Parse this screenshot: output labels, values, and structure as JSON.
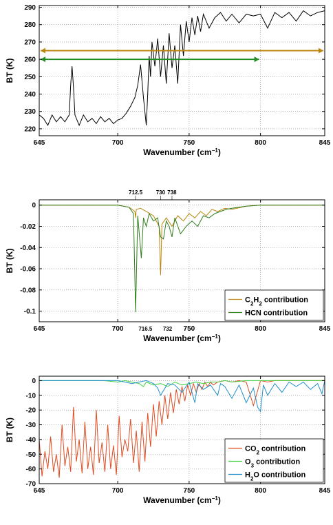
{
  "chart_data": [
    {
      "type": "line",
      "title": "",
      "xlabel": "Wavenumber (cm",
      "xlabel_sup": "−1",
      "xlabel_end": ")",
      "ylabel": "BT (K)",
      "xlim": [
        645,
        845
      ],
      "ylim": [
        216,
        291
      ],
      "xticks": [
        645,
        700,
        750,
        800,
        845
      ],
      "yticks": [
        220,
        230,
        240,
        250,
        260,
        270,
        280,
        290
      ],
      "grid": true,
      "series": [
        {
          "color": "#000000",
          "x": [
            645,
            648,
            651,
            654,
            657,
            660,
            663,
            666,
            667,
            668,
            669,
            670,
            673,
            676,
            679,
            682,
            685,
            688,
            691,
            694,
            697,
            700,
            703,
            706,
            709,
            712,
            714,
            716,
            718,
            720,
            721,
            722,
            723,
            724,
            726,
            728,
            730,
            732,
            734,
            736,
            738,
            740,
            742,
            744,
            746,
            748,
            750,
            752,
            754,
            756,
            758,
            760,
            764,
            768,
            772,
            776,
            780,
            785,
            790,
            795,
            800,
            805,
            810,
            815,
            820,
            825,
            830,
            835,
            840,
            845
          ],
          "y": [
            228,
            226,
            222,
            228,
            224,
            227,
            224,
            228,
            245,
            256,
            244,
            228,
            222,
            228,
            224,
            226,
            223,
            227,
            224,
            226,
            223,
            225,
            226,
            229,
            233,
            238,
            245,
            257,
            238,
            222,
            240,
            262,
            250,
            270,
            256,
            272,
            250,
            268,
            246,
            275,
            255,
            268,
            246,
            280,
            262,
            282,
            270,
            284,
            274,
            285,
            276,
            286,
            278,
            284,
            287,
            282,
            286,
            281,
            286,
            285,
            286,
            278,
            287,
            284,
            287,
            282,
            288,
            285,
            287,
            288
          ]
        }
      ],
      "annotations": [
        {
          "type": "double-arrow",
          "x1": 645,
          "x2": 845,
          "y": 265,
          "color": "#b8860b"
        },
        {
          "type": "double-arrow",
          "x1": 645,
          "x2": 800,
          "y": 260,
          "color": "#228b22"
        }
      ]
    },
    {
      "type": "line",
      "xlabel": "Wavenumber (cm",
      "xlabel_sup": "−1",
      "xlabel_end": ")",
      "ylabel": "BT (K)",
      "xlim": [
        645,
        845
      ],
      "ylim": [
        -0.11,
        0.005
      ],
      "xticks": [
        645,
        700,
        750,
        800,
        845
      ],
      "yticks": [
        0,
        -0.02,
        -0.04,
        -0.06,
        -0.08,
        -0.1
      ],
      "ytick_labels": [
        "0",
        "-0.02",
        "-0.04",
        "-0.06",
        "-0.08",
        "-0.1"
      ],
      "top_labels": [
        "712.5",
        "730",
        "738"
      ],
      "top_label_x": [
        712.5,
        730,
        738
      ],
      "bottom_labels": [
        "716.5",
        "732"
      ],
      "bottom_label_x": [
        716.5,
        732
      ],
      "grid": true,
      "legend": "bottom-right",
      "series": [
        {
          "name_main": "C",
          "name_sub1": "2",
          "name_mid": "H",
          "name_sub2": "2",
          "name_tail": " contribution",
          "color": "#b8860b",
          "x": [
            645,
            700,
            708,
            712,
            712.5,
            713,
            716,
            720,
            725,
            729,
            730,
            731,
            734,
            738,
            742,
            746,
            750,
            754,
            758,
            762,
            766,
            770,
            775,
            780,
            790,
            800,
            845
          ],
          "y": [
            0,
            0,
            -0.002,
            -0.006,
            -0.012,
            -0.004,
            -0.003,
            -0.006,
            -0.01,
            -0.02,
            -0.066,
            -0.018,
            -0.012,
            -0.02,
            -0.01,
            -0.015,
            -0.008,
            -0.012,
            -0.006,
            -0.01,
            -0.004,
            -0.006,
            -0.003,
            -0.004,
            -0.001,
            0,
            0
          ]
        },
        {
          "name": "HCN contribution",
          "color": "#2e7d1a",
          "x": [
            645,
            700,
            708,
            711,
            712.5,
            714,
            716.5,
            718,
            720,
            722,
            725,
            728,
            730,
            732,
            734,
            736,
            738,
            740,
            744,
            748,
            752,
            756,
            760,
            764,
            768,
            772,
            776,
            780,
            790,
            800,
            845
          ],
          "y": [
            0,
            0,
            -0.002,
            -0.008,
            -0.101,
            -0.01,
            -0.05,
            -0.012,
            -0.02,
            -0.008,
            -0.015,
            -0.012,
            -0.03,
            -0.032,
            -0.015,
            -0.02,
            -0.03,
            -0.012,
            -0.027,
            -0.02,
            -0.015,
            -0.02,
            -0.01,
            -0.012,
            -0.008,
            -0.006,
            -0.004,
            -0.003,
            -0.001,
            0,
            0
          ]
        }
      ]
    },
    {
      "type": "line",
      "xlabel": "Wavenumber (cm",
      "xlabel_sup": "−1",
      "xlabel_end": ")",
      "ylabel": "BT (K)",
      "xlim": [
        645,
        845
      ],
      "ylim": [
        -70,
        3
      ],
      "xticks": [
        645,
        700,
        750,
        800,
        845
      ],
      "yticks": [
        0,
        -10,
        -20,
        -30,
        -40,
        -50,
        -60,
        -70
      ],
      "grid": true,
      "legend": "bottom-right",
      "series": [
        {
          "name_main": "CO",
          "name_sub1": "2",
          "name_tail": " contribution",
          "color": "#e04a1f",
          "x": [
            645,
            647,
            649,
            651,
            653,
            655,
            657,
            659,
            661,
            663,
            665,
            667,
            669,
            671,
            673,
            675,
            677,
            679,
            681,
            683,
            685,
            687,
            689,
            691,
            693,
            695,
            697,
            699,
            701,
            703,
            705,
            707,
            709,
            711,
            713,
            715,
            717,
            719,
            721,
            723,
            725,
            727,
            729,
            731,
            733,
            735,
            737,
            739,
            741,
            743,
            745,
            747,
            749,
            751,
            753,
            755,
            757,
            759,
            761,
            763,
            765,
            767,
            770,
            775,
            780,
            785,
            790,
            795,
            800,
            805,
            810,
            820,
            830,
            845
          ],
          "y": [
            -40,
            -65,
            -48,
            -60,
            -38,
            -62,
            -50,
            -66,
            -30,
            -58,
            -45,
            -62,
            -18,
            -55,
            -40,
            -63,
            -28,
            -60,
            -45,
            -64,
            -20,
            -56,
            -42,
            -62,
            -30,
            -60,
            -44,
            -64,
            -24,
            -52,
            -40,
            -48,
            -26,
            -56,
            -34,
            -62,
            -28,
            -55,
            -22,
            -45,
            -16,
            -38,
            -14,
            -30,
            -10,
            -26,
            -8,
            -22,
            -6,
            -16,
            -4,
            -14,
            -3,
            -10,
            -2,
            -8,
            -2,
            -6,
            -1,
            -4,
            -1,
            -3,
            -1,
            0,
            -1,
            0,
            -1,
            -17,
            0,
            -1,
            0,
            0,
            0,
            0
          ]
        },
        {
          "name_main": "O",
          "name_sub1": "3",
          "name_tail": " contribution",
          "color": "#3fd23f",
          "x": [
            645,
            690,
            700,
            705,
            710,
            715,
            718,
            720,
            725,
            730,
            735,
            740,
            745,
            750,
            755,
            760,
            765,
            770,
            775,
            780,
            790,
            800,
            845
          ],
          "y": [
            0,
            0,
            -1,
            0,
            -1,
            -2,
            -4,
            -1,
            -3,
            -2,
            -4,
            -1,
            -3,
            -2,
            -1,
            -2,
            -1,
            -1,
            0,
            -1,
            0,
            0,
            0
          ]
        },
        {
          "name_main": "H",
          "name_sub1": "2",
          "name_mid": "O",
          "name_tail": " contribution",
          "color": "#1f8fc9",
          "x": [
            645,
            700,
            705,
            710,
            715,
            720,
            725,
            728,
            730,
            735,
            740,
            745,
            750,
            754,
            756,
            760,
            765,
            770,
            772,
            775,
            780,
            785,
            790,
            795,
            798,
            800,
            802,
            805,
            810,
            815,
            820,
            825,
            830,
            835,
            840,
            843,
            845
          ],
          "y": [
            0,
            0,
            -1,
            -2,
            -1,
            0,
            -2,
            -5,
            -10,
            -2,
            -3,
            -8,
            -1,
            -15,
            -2,
            -6,
            -3,
            -10,
            -2,
            -4,
            -12,
            -3,
            -15,
            -5,
            -18,
            -21,
            -3,
            -10,
            -2,
            -8,
            -1,
            -4,
            -1,
            -6,
            -2,
            -9,
            0
          ]
        }
      ]
    }
  ]
}
